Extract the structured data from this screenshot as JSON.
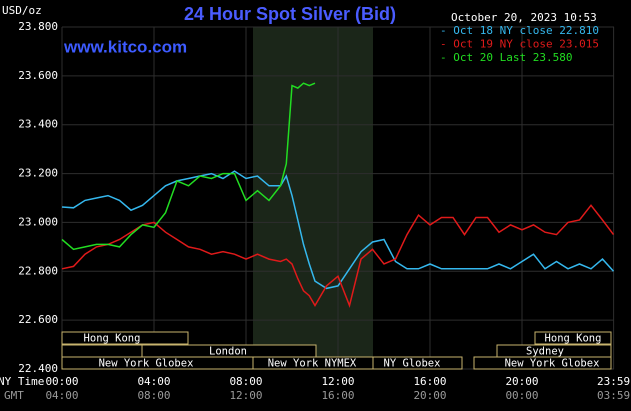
{
  "chart_data": {
    "type": "line",
    "title": "24 Hour Spot Silver (Bid)",
    "timestamp": "October 20, 2023 10:53",
    "watermark": "www.kitco.com",
    "y_label": "USD/oz",
    "x_label": "NY Time",
    "x2_label": "GMT",
    "x": [
      0,
      0.5,
      1,
      1.5,
      2,
      2.5,
      3,
      3.5,
      4,
      4.5,
      5,
      5.5,
      6,
      6.5,
      7,
      7.5,
      8,
      8.5,
      9,
      9.5,
      9.75,
      10,
      10.25,
      10.5,
      10.75,
      11,
      11.5,
      12,
      12.5,
      13,
      13.5,
      14,
      14.5,
      15,
      15.5,
      16,
      16.5,
      17,
      17.5,
      18,
      18.5,
      19,
      19.5,
      20,
      20.5,
      21,
      21.5,
      22,
      22.5,
      23,
      23.5,
      23.98
    ],
    "series": [
      {
        "name": "- Oct 18 NY close 22.810",
        "color": "#35b8ee",
        "values": [
          23.063,
          23.06,
          23.09,
          23.1,
          23.11,
          23.09,
          23.05,
          23.07,
          23.11,
          23.15,
          23.17,
          23.18,
          23.19,
          23.2,
          23.18,
          23.21,
          23.18,
          23.19,
          23.15,
          23.15,
          23.19,
          23.11,
          23.01,
          22.91,
          22.83,
          22.76,
          22.73,
          22.74,
          22.81,
          22.88,
          22.92,
          22.93,
          22.84,
          22.81,
          22.81,
          22.83,
          22.81,
          22.81,
          22.81,
          22.81,
          22.81,
          22.83,
          22.81,
          22.84,
          22.87,
          22.81,
          22.84,
          22.81,
          22.83,
          22.81,
          22.85,
          22.8
        ]
      },
      {
        "name": "- Oct 19 NY close 23.015",
        "color": "#e01a1a",
        "values": [
          22.81,
          22.82,
          22.87,
          22.9,
          22.91,
          22.93,
          22.96,
          22.99,
          23.0,
          22.96,
          22.93,
          22.9,
          22.89,
          22.87,
          22.88,
          22.87,
          22.85,
          22.87,
          22.85,
          22.84,
          22.85,
          22.83,
          22.77,
          22.72,
          22.7,
          22.66,
          22.74,
          22.78,
          22.66,
          22.85,
          22.89,
          22.83,
          22.85,
          22.95,
          23.03,
          22.99,
          23.02,
          23.02,
          22.95,
          23.02,
          23.02,
          22.96,
          22.99,
          22.97,
          22.99,
          22.96,
          22.95,
          23.0,
          23.01,
          23.07,
          23.01,
          22.95
        ]
      },
      {
        "name": "- Oct 20 Last 23.580",
        "color": "#22dd22",
        "values": [
          22.93,
          22.89,
          22.9,
          22.91,
          22.91,
          22.9,
          22.95,
          22.99,
          22.98,
          23.04,
          23.17,
          23.15,
          23.19,
          23.18,
          23.2,
          23.2,
          23.09,
          23.13,
          23.09,
          23.15,
          23.24,
          23.56,
          23.55,
          23.57,
          23.56,
          23.57,
          null,
          null,
          null,
          null,
          null,
          null,
          null,
          null,
          null,
          null,
          null,
          null,
          null,
          null,
          null,
          null,
          null,
          null,
          null,
          null,
          null,
          null,
          null,
          null,
          null,
          null
        ]
      }
    ],
    "xlim": [
      0,
      24
    ],
    "xticks": [
      {
        "value": 0,
        "label": "00:00"
      },
      {
        "value": 4,
        "label": "04:00"
      },
      {
        "value": 8,
        "label": "08:00"
      },
      {
        "value": 12,
        "label": "12:00"
      },
      {
        "value": 16,
        "label": "16:00"
      },
      {
        "value": 20,
        "label": "20:00"
      },
      {
        "value": 23.983,
        "label": "23:59"
      }
    ],
    "gmt_tick_labels": [
      "04:00",
      "08:00",
      "12:00",
      "16:00",
      "20:00",
      "00:00",
      "03:59"
    ],
    "ylim": [
      22.4,
      23.8
    ],
    "yticks": [
      {
        "value": 22.4,
        "label": "22.400"
      },
      {
        "value": 22.6,
        "label": "22.600"
      },
      {
        "value": 22.8,
        "label": "22.800"
      },
      {
        "value": 23.0,
        "label": "23.000"
      },
      {
        "value": 23.2,
        "label": "23.200"
      },
      {
        "value": 23.4,
        "label": "23.400"
      },
      {
        "value": 23.6,
        "label": "23.600"
      },
      {
        "value": 23.8,
        "label": "23.800"
      }
    ],
    "grid": true,
    "sessions": [
      "Hong Kong",
      "London",
      "New York Globex",
      "New York NYMEX",
      "NY Globex",
      "Hong Kong",
      "Sydney",
      "New York Globex"
    ]
  }
}
